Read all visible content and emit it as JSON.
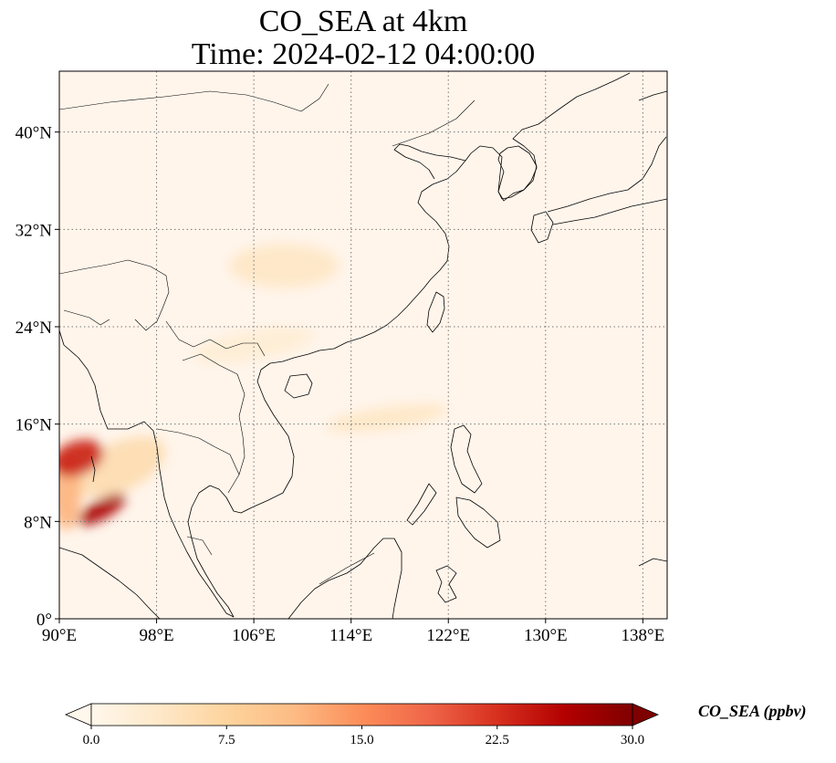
{
  "title": {
    "line1": "CO_SEA at 4km",
    "line2": "Time: 2024-02-12 04:00:00"
  },
  "map": {
    "variable": "CO_SEA",
    "extent": {
      "lon": [
        90,
        140
      ],
      "lat": [
        0,
        45
      ]
    },
    "x_ticks": [
      {
        "lon": 90,
        "label": "90°E"
      },
      {
        "lon": 98,
        "label": "98°E"
      },
      {
        "lon": 106,
        "label": "106°E"
      },
      {
        "lon": 114,
        "label": "114°E"
      },
      {
        "lon": 122,
        "label": "122°E"
      },
      {
        "lon": 130,
        "label": "130°E"
      },
      {
        "lon": 138,
        "label": "138°E"
      }
    ],
    "y_ticks": [
      {
        "lat": 0,
        "label": "0°"
      },
      {
        "lat": 8,
        "label": "8°N"
      },
      {
        "lat": 16,
        "label": "16°N"
      },
      {
        "lat": 24,
        "label": "24°N"
      },
      {
        "lat": 32,
        "label": "32°N"
      },
      {
        "lat": 40,
        "label": "40°N"
      }
    ],
    "gridlines": "dotted",
    "background_color": "#fff5eb",
    "features": [
      "coastlines",
      "country-borders"
    ],
    "plumes": [
      {
        "lon": 91.5,
        "lat": 13.2,
        "rlon": 2.2,
        "rlat": 1.4,
        "rot": -20,
        "value": 24
      },
      {
        "lon": 93.5,
        "lat": 9.0,
        "rlon": 2.2,
        "rlat": 0.8,
        "rot": -30,
        "value": 27
      },
      {
        "lon": 90.6,
        "lat": 10.5,
        "rlon": 1.2,
        "rlat": 3.2,
        "rot": 0,
        "value": 12
      },
      {
        "lon": 95.0,
        "lat": 12.5,
        "rlon": 4.0,
        "rlat": 2.0,
        "rot": -25,
        "value": 6
      },
      {
        "lon": 108.5,
        "lat": 29.0,
        "rlon": 4.5,
        "rlat": 1.8,
        "rot": 0,
        "value": 4
      },
      {
        "lon": 117.0,
        "lat": 16.5,
        "rlon": 5.0,
        "rlat": 0.9,
        "rot": -8,
        "value": 4
      },
      {
        "lon": 106.0,
        "lat": 22.5,
        "rlon": 5.0,
        "rlat": 1.2,
        "rot": -10,
        "value": 2.5
      }
    ]
  },
  "colorbar": {
    "label": "CO_SEA (ppbv)",
    "min": 0,
    "max": 30,
    "extend": "both",
    "cmap": "OrRd",
    "stops": [
      "#fff7ec",
      "#fee8c8",
      "#fdd49e",
      "#fdbb84",
      "#fc8d59",
      "#ef6548",
      "#d7301f",
      "#b30000",
      "#7f0000"
    ],
    "ticks": [
      {
        "value": 0,
        "label": "0.0"
      },
      {
        "value": 7.5,
        "label": "7.5"
      },
      {
        "value": 15,
        "label": "15.0"
      },
      {
        "value": 22.5,
        "label": "22.5"
      },
      {
        "value": 30,
        "label": "30.0"
      }
    ]
  }
}
